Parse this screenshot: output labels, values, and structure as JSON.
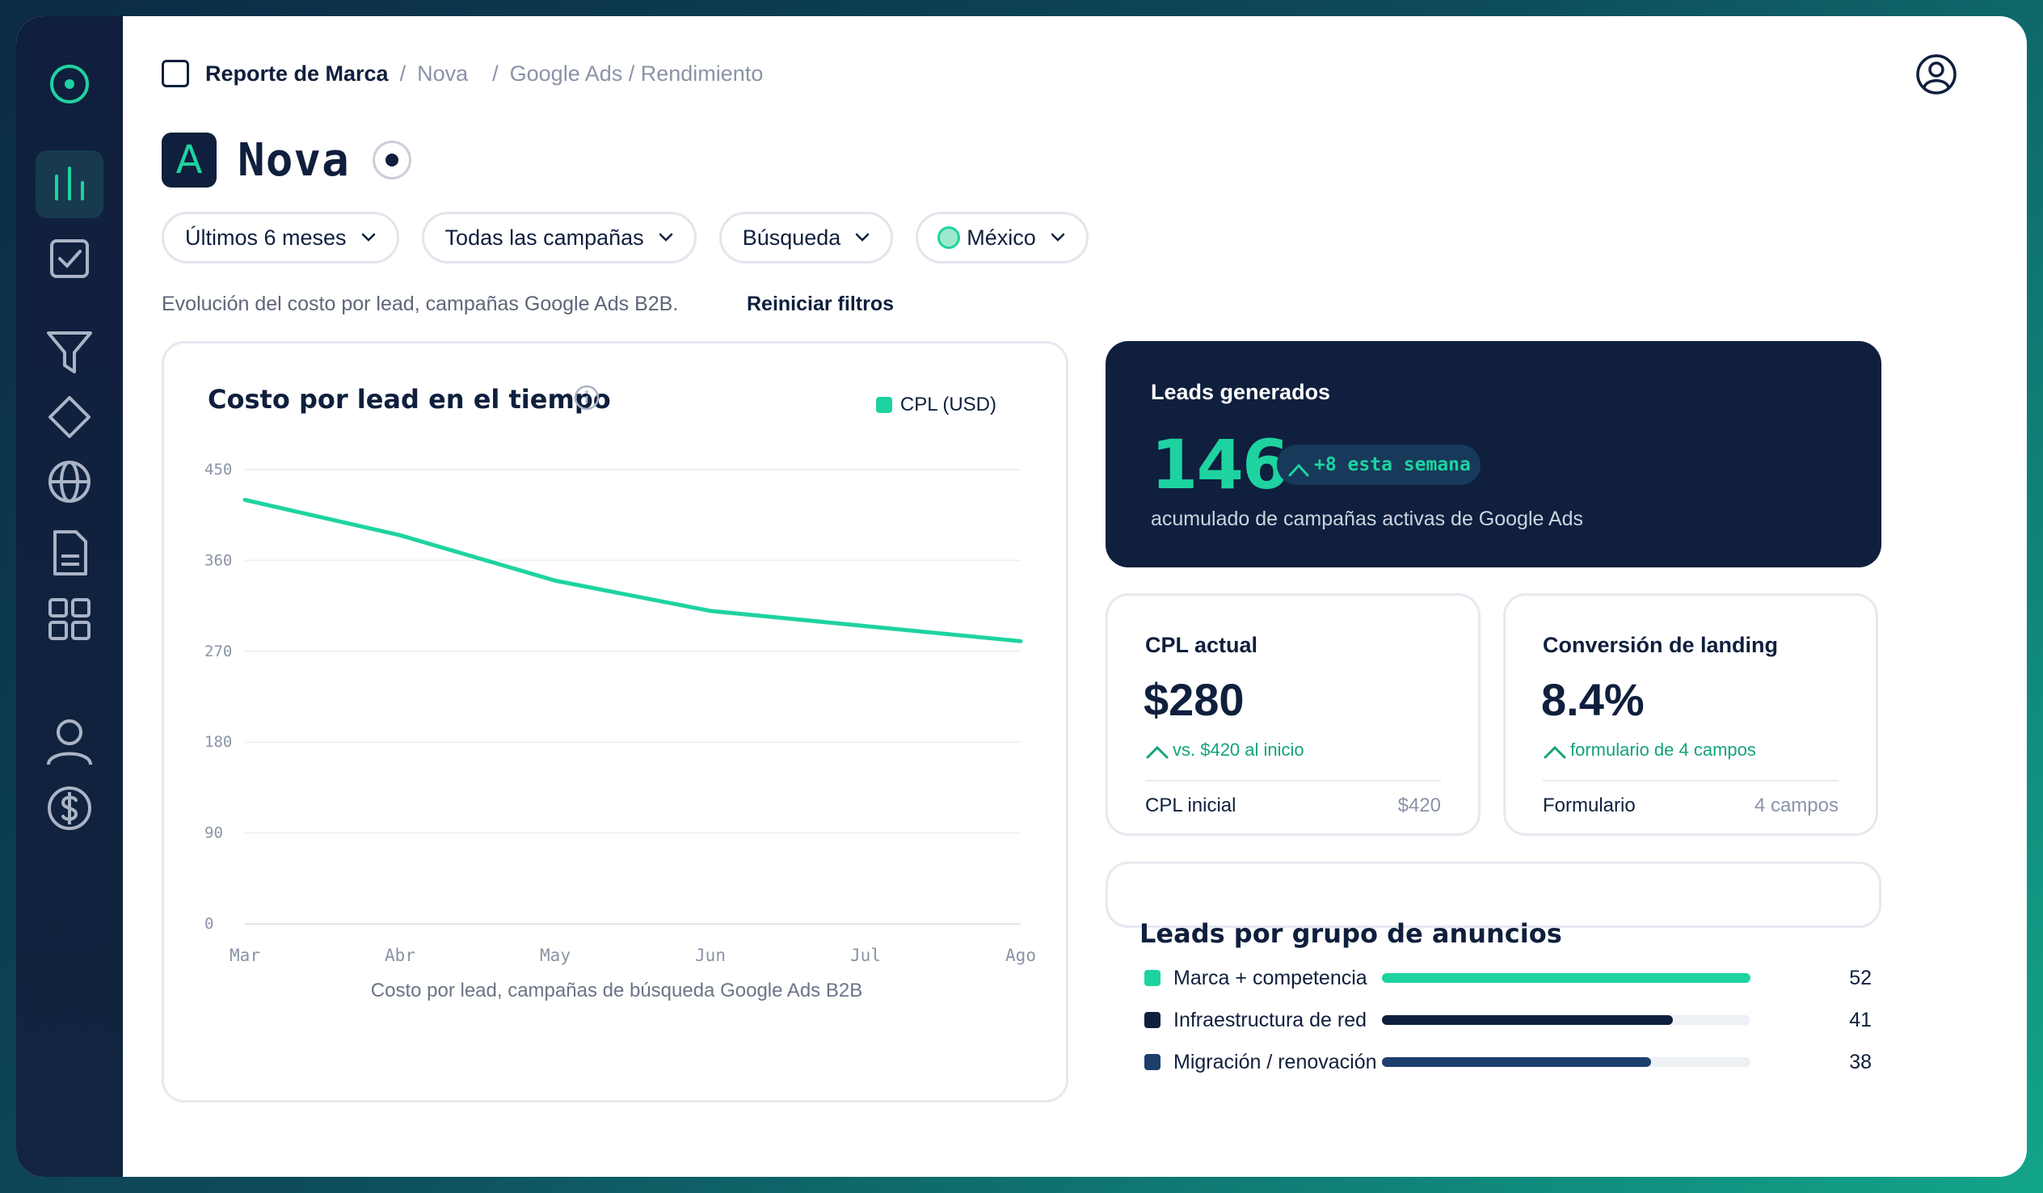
{
  "breadcrumb": {
    "items": [
      "Reporte de Marca",
      "Nova",
      "Google Ads / Rendimiento"
    ],
    "separator": "/"
  },
  "header": {
    "logo_letter": "A",
    "title": "Nova"
  },
  "sidebar": {
    "items": [
      {
        "icon": "target-icon"
      },
      {
        "icon": "bar-chart-icon",
        "active": true
      },
      {
        "icon": "checkbox-icon"
      },
      {
        "icon": "funnel-icon"
      },
      {
        "icon": "diamond-icon"
      },
      {
        "icon": "globe-icon"
      },
      {
        "icon": "document-icon"
      },
      {
        "icon": "grid-icon"
      },
      {
        "icon": "user-icon"
      },
      {
        "icon": "dollar-icon"
      }
    ]
  },
  "filters": {
    "period": "Últimos 6 meses",
    "campaigns": "Todas las campañas",
    "network": "Búsqueda",
    "country": "México"
  },
  "description": "Evolución del costo por lead, campañas Google Ads B2B.",
  "reset_label": "Reiniciar filtros",
  "chart_card": {
    "title": "Costo por lead en el tiempo",
    "legend": "CPL (USD)",
    "caption": "Costo por lead, campañas de búsqueda Google Ads B2B"
  },
  "chart_data": {
    "type": "line",
    "categories": [
      "Mar",
      "Abr",
      "May",
      "Jun",
      "Jul",
      "Ago"
    ],
    "series": [
      {
        "name": "CPL (USD)",
        "values": [
          420,
          385,
          340,
          310,
          295,
          280
        ]
      }
    ],
    "ylim": [
      0,
      450
    ],
    "yticks": [
      0,
      90,
      180,
      270,
      360,
      450
    ],
    "xlabel": "Costo por lead, campañas de búsqueda Google Ads B2B",
    "ylabel": "",
    "title": "Costo por lead en el tiempo",
    "grid": true,
    "legend_position": "top-right",
    "color": "#1ed3a0"
  },
  "leads": {
    "label": "Leads generados",
    "value": "146",
    "badge": "+8 esta semana",
    "subtitle": "acumulado de campañas activas de Google Ads"
  },
  "kpis": [
    {
      "label": "CPL actual",
      "value": "$280",
      "trend": "vs. $420 al inicio",
      "foot_label": "CPL inicial",
      "foot_value": "$420"
    },
    {
      "label": "Conversión de landing",
      "value": "8.4%",
      "trend": "formulario de 4 campos",
      "foot_label": "Formulario",
      "foot_value": "4 campos"
    }
  ],
  "groups": {
    "title": "Leads por grupo de anuncios",
    "max": 52,
    "items": [
      {
        "label": "Marca + competencia",
        "value": 52,
        "color": "#1ed3a0"
      },
      {
        "label": "Infraestructura de red",
        "value": 41,
        "color": "#0f1f3d"
      },
      {
        "label": "Migración / renovación",
        "value": 38,
        "color": "#1d3f6e"
      }
    ]
  }
}
